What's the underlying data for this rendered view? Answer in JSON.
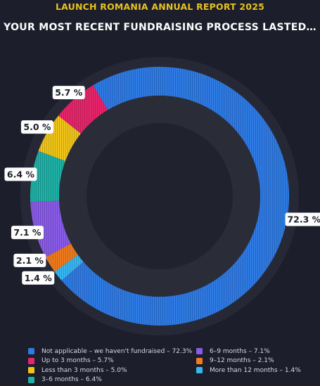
{
  "header": {
    "report_title": "LAUNCH ROMANIA ANNUAL REPORT 2025",
    "chart_title": "YOUR MOST RECENT FUNDRAISING PROCESS LASTED…"
  },
  "chart_data": {
    "type": "pie",
    "subtype": "donut",
    "title": "YOUR MOST RECENT FUNDRAISING PROCESS LASTED…",
    "legend_placement": "bottom",
    "slices": [
      {
        "label": "Not applicable – we haven't fundraised",
        "legend": "Not applicable – we haven't fundraised – 72.3%",
        "value": 72.3,
        "data_label": "72.3 %",
        "color": "#2f7be6"
      },
      {
        "label": "More than 12 months",
        "legend": "More than 12 months – 1.4%",
        "value": 1.4,
        "data_label": "1.4 %",
        "color": "#38b6f2"
      },
      {
        "label": "9–12 months",
        "legend": "9–12 months – 2.1%",
        "value": 2.1,
        "data_label": "2.1 %",
        "color": "#f07b1f"
      },
      {
        "label": "6–9 months",
        "legend": "6–9 months – 7.1%",
        "value": 7.1,
        "data_label": "7.1 %",
        "color": "#8a5be6"
      },
      {
        "label": "3–6 months",
        "legend": "3–6 months – 6.4%",
        "value": 6.4,
        "data_label": "6.4 %",
        "color": "#1fb0a6"
      },
      {
        "label": "Less than 3 months",
        "legend": "Less than 3 months – 5.0%",
        "value": 5.0,
        "data_label": "5.0 %",
        "color": "#f0c419"
      },
      {
        "label": "Up to 3 months",
        "legend": "Up to 3 months – 5.7%",
        "value": 5.7,
        "data_label": "5.7 %",
        "color": "#e8246b"
      }
    ],
    "legend_order": [
      [
        "Not applicable – we haven't fundraised – 72.3%",
        "#2f7be6"
      ],
      [
        "Up to 3 months – 5.7%",
        "#e8246b"
      ],
      [
        "Less than 3 months – 5.0%",
        "#f0c419"
      ],
      [
        "3–6 months – 6.4%",
        "#1fb0a6"
      ],
      [
        "6–9 months – 7.1%",
        "#8a5be6"
      ],
      [
        "9–12 months – 2.1%",
        "#f07b1f"
      ],
      [
        "More than 12 months – 1.4%",
        "#38b6f2"
      ]
    ]
  }
}
